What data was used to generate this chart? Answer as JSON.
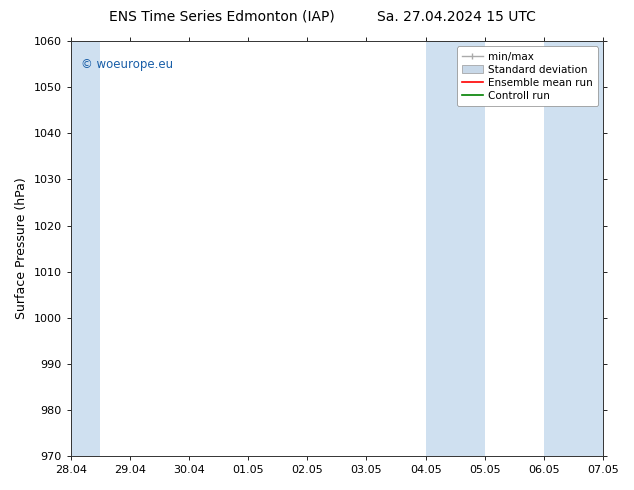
{
  "title_left": "ENS Time Series Edmonton (IAP)",
  "title_right": "Sa. 27.04.2024 15 UTC",
  "ylabel": "Surface Pressure (hPa)",
  "ylim": [
    970,
    1060
  ],
  "yticks": [
    970,
    980,
    990,
    1000,
    1010,
    1020,
    1030,
    1040,
    1050,
    1060
  ],
  "xlim_start": 0,
  "xlim_end": 9,
  "xtick_labels": [
    "28.04",
    "29.04",
    "30.04",
    "01.05",
    "02.05",
    "03.05",
    "04.05",
    "05.05",
    "06.05",
    "07.05"
  ],
  "xtick_positions": [
    0,
    1,
    2,
    3,
    4,
    5,
    6,
    7,
    8,
    9
  ],
  "shaded_bands": [
    {
      "x_start": 0.0,
      "x_end": 0.5
    },
    {
      "x_start": 6.0,
      "x_end": 7.0
    },
    {
      "x_start": 8.0,
      "x_end": 9.0
    }
  ],
  "shaded_color": "#cfe0f0",
  "watermark_text": "© woeurope.eu",
  "watermark_color": "#1a5fa8",
  "legend_items": [
    {
      "label": "min/max",
      "color": "#aaaaaa",
      "type": "errorbar"
    },
    {
      "label": "Standard deviation",
      "color": "#c8d8e8",
      "type": "fill"
    },
    {
      "label": "Ensemble mean run",
      "color": "red",
      "type": "line"
    },
    {
      "label": "Controll run",
      "color": "green",
      "type": "line"
    }
  ],
  "bg_color": "#ffffff",
  "title_fontsize": 10,
  "axis_fontsize": 9,
  "tick_fontsize": 8,
  "legend_fontsize": 7.5
}
